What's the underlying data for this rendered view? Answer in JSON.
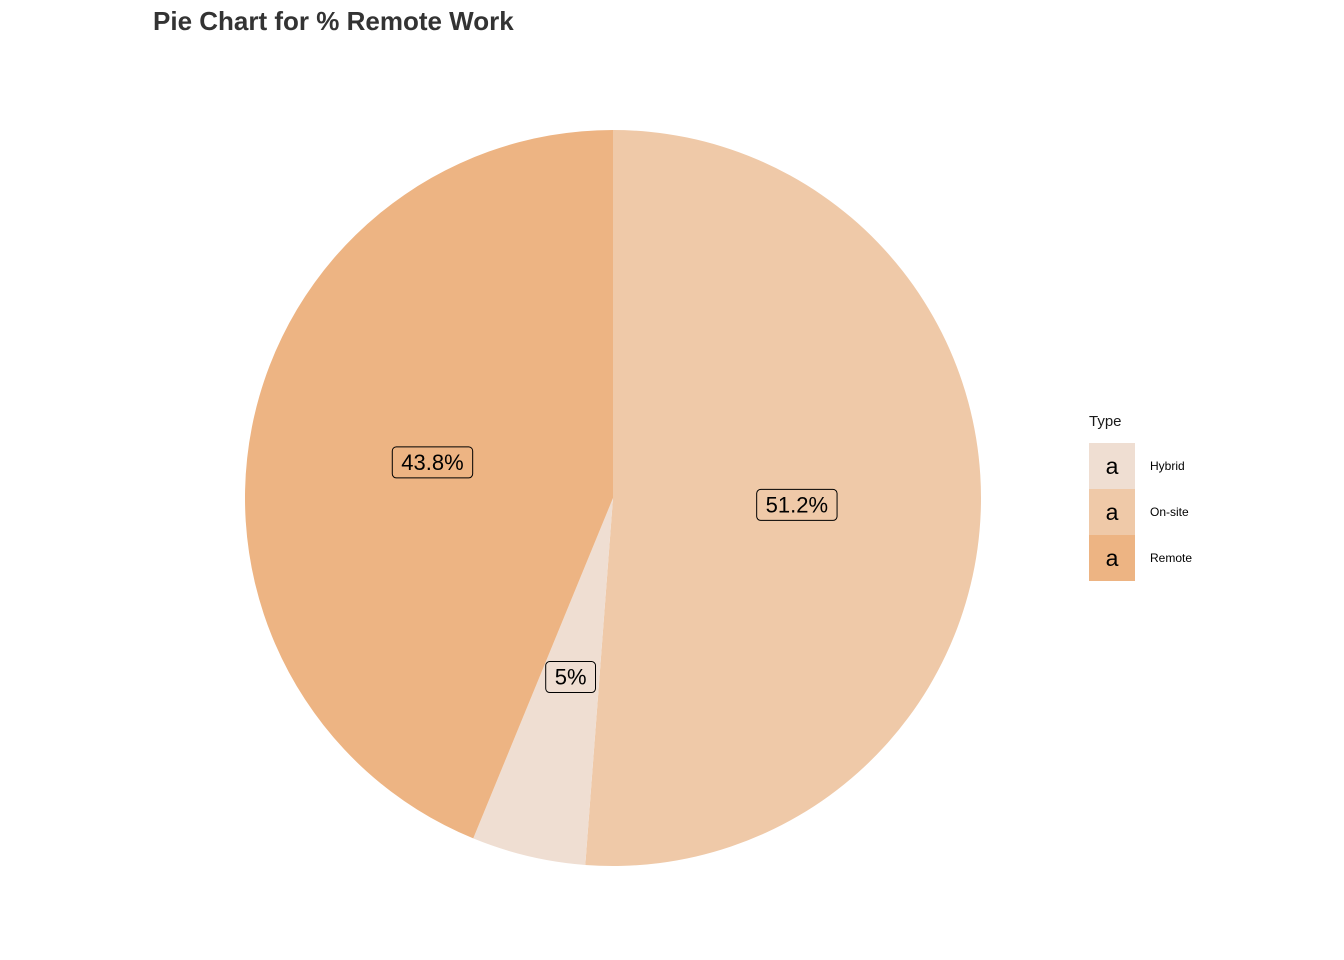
{
  "chart_data": {
    "type": "pie",
    "title": "Pie Chart for % Remote Work",
    "legend_title": "Type",
    "legend_position": "right",
    "legend_key_glyph": "a",
    "slices": [
      {
        "name": "Hybrid",
        "value": 5.0,
        "label": "5%",
        "color": "#EFDED2"
      },
      {
        "name": "On-site",
        "value": 51.2,
        "label": "51.2%",
        "color": "#EFC9A8"
      },
      {
        "name": "Remote",
        "value": 43.8,
        "label": "43.8%",
        "color": "#EDB483"
      }
    ],
    "draw_order": [
      "On-site",
      "Hybrid",
      "Remote"
    ],
    "start_angle": "12 o'clock",
    "direction": "clockwise"
  }
}
